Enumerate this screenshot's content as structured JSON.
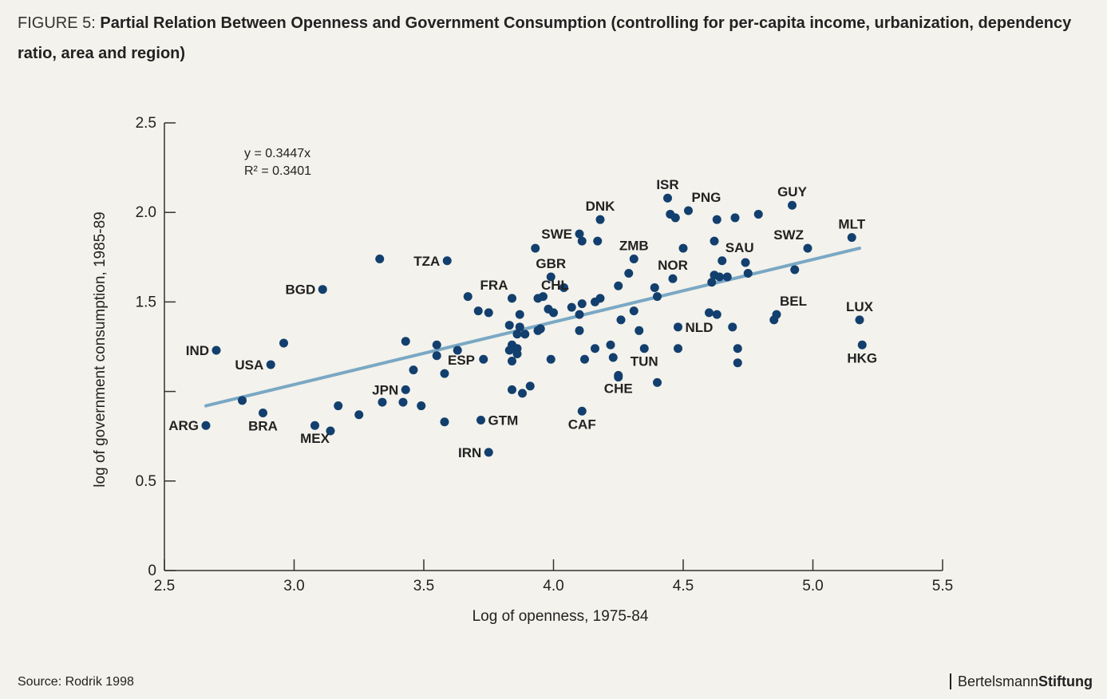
{
  "title_prefix": "FIGURE 5:",
  "title_main": "Partial Relation Between Openness and Government Consumption (controlling for per-capita income, urbanization, dependency ratio, area and region)",
  "source": "Source: Rodrik 1998",
  "brand": {
    "part1": "Bertelsmann",
    "part2": "Stiftung"
  },
  "colors": {
    "point": "#123f6e",
    "trend": "#7aa8c4",
    "axis": "#333333",
    "background": "#f3f2ec"
  },
  "chart_data": {
    "type": "scatter",
    "xlabel": "Log of openness, 1975-84",
    "ylabel": "log of government consumption, 1985-89",
    "xlim": [
      2.5,
      5.5
    ],
    "ylim": [
      0,
      2.5
    ],
    "xticks": [
      "2.5",
      "3.0",
      "3.5",
      "4.0",
      "4.5",
      "5.0",
      "5.5"
    ],
    "yticks": [
      "0",
      "0.5",
      "1.5",
      "2.0",
      "2.5"
    ],
    "yticks_values": [
      0,
      0.5,
      1.5,
      2.0,
      2.5
    ],
    "xticks_values": [
      2.5,
      3.0,
      3.5,
      4.0,
      4.5,
      5.0,
      5.5
    ],
    "extra_ytick_marks": [
      1.0
    ],
    "grid": false,
    "trendline": {
      "equation": "y = 0.3447x",
      "r2": "R² = 0.3401",
      "x_range": [
        2.66,
        5.18
      ],
      "y_range": [
        0.92,
        1.8
      ]
    },
    "points": [
      {
        "x": 2.66,
        "y": 0.81,
        "label": "ARG",
        "side": "left"
      },
      {
        "x": 2.7,
        "y": 1.23,
        "label": "IND",
        "side": "left"
      },
      {
        "x": 2.8,
        "y": 0.95,
        "label": ""
      },
      {
        "x": 2.88,
        "y": 0.88,
        "label": "BRA",
        "side": "below"
      },
      {
        "x": 2.91,
        "y": 1.15,
        "label": "USA",
        "side": "left"
      },
      {
        "x": 2.96,
        "y": 1.27,
        "label": ""
      },
      {
        "x": 3.08,
        "y": 0.81,
        "label": "MEX",
        "side": "below"
      },
      {
        "x": 3.11,
        "y": 1.57,
        "label": "BGD",
        "side": "left"
      },
      {
        "x": 3.14,
        "y": 0.78,
        "label": ""
      },
      {
        "x": 3.17,
        "y": 0.92,
        "label": ""
      },
      {
        "x": 3.25,
        "y": 0.87,
        "label": ""
      },
      {
        "x": 3.33,
        "y": 1.74,
        "label": ""
      },
      {
        "x": 3.34,
        "y": 0.94,
        "label": ""
      },
      {
        "x": 3.42,
        "y": 0.94,
        "label": ""
      },
      {
        "x": 3.43,
        "y": 1.01,
        "label": "JPN",
        "side": "left"
      },
      {
        "x": 3.43,
        "y": 1.28,
        "label": ""
      },
      {
        "x": 3.46,
        "y": 1.12,
        "label": ""
      },
      {
        "x": 3.49,
        "y": 0.92,
        "label": ""
      },
      {
        "x": 3.55,
        "y": 1.26,
        "label": ""
      },
      {
        "x": 3.55,
        "y": 1.2,
        "label": ""
      },
      {
        "x": 3.58,
        "y": 0.83,
        "label": ""
      },
      {
        "x": 3.58,
        "y": 1.1,
        "label": "ESP",
        "side": "above-right"
      },
      {
        "x": 3.59,
        "y": 1.73,
        "label": "TZA",
        "side": "left"
      },
      {
        "x": 3.63,
        "y": 1.23,
        "label": ""
      },
      {
        "x": 3.67,
        "y": 1.53,
        "label": ""
      },
      {
        "x": 3.71,
        "y": 1.45,
        "label": ""
      },
      {
        "x": 3.72,
        "y": 0.84,
        "label": "GTM",
        "side": "right"
      },
      {
        "x": 3.73,
        "y": 1.18,
        "label": ""
      },
      {
        "x": 3.75,
        "y": 1.44,
        "label": ""
      },
      {
        "x": 3.75,
        "y": 0.66,
        "label": "IRN",
        "side": "left"
      },
      {
        "x": 3.83,
        "y": 1.37,
        "label": ""
      },
      {
        "x": 3.83,
        "y": 1.23,
        "label": ""
      },
      {
        "x": 3.84,
        "y": 1.26,
        "label": ""
      },
      {
        "x": 3.84,
        "y": 1.17,
        "label": ""
      },
      {
        "x": 3.84,
        "y": 1.01,
        "label": ""
      },
      {
        "x": 3.84,
        "y": 1.52,
        "label": "FRA",
        "side": "above-left"
      },
      {
        "x": 3.86,
        "y": 1.32,
        "label": ""
      },
      {
        "x": 3.86,
        "y": 1.24,
        "label": ""
      },
      {
        "x": 3.86,
        "y": 1.21,
        "label": ""
      },
      {
        "x": 3.87,
        "y": 1.36,
        "label": ""
      },
      {
        "x": 3.87,
        "y": 1.43,
        "label": ""
      },
      {
        "x": 3.88,
        "y": 0.99,
        "label": ""
      },
      {
        "x": 3.89,
        "y": 1.32,
        "label": ""
      },
      {
        "x": 3.91,
        "y": 1.03,
        "label": ""
      },
      {
        "x": 3.93,
        "y": 1.8,
        "label": ""
      },
      {
        "x": 3.94,
        "y": 1.52,
        "label": "CHL",
        "side": "above-right"
      },
      {
        "x": 3.94,
        "y": 1.34,
        "label": ""
      },
      {
        "x": 3.95,
        "y": 1.35,
        "label": ""
      },
      {
        "x": 3.96,
        "y": 1.53,
        "label": ""
      },
      {
        "x": 3.98,
        "y": 1.46,
        "label": ""
      },
      {
        "x": 3.99,
        "y": 1.18,
        "label": ""
      },
      {
        "x": 3.99,
        "y": 1.64,
        "label": "GBR",
        "side": "above"
      },
      {
        "x": 4.0,
        "y": 1.44,
        "label": ""
      },
      {
        "x": 4.04,
        "y": 1.58,
        "label": ""
      },
      {
        "x": 4.07,
        "y": 1.47,
        "label": ""
      },
      {
        "x": 4.1,
        "y": 1.88,
        "label": "SWE",
        "side": "left"
      },
      {
        "x": 4.1,
        "y": 1.34,
        "label": ""
      },
      {
        "x": 4.1,
        "y": 1.43,
        "label": ""
      },
      {
        "x": 4.11,
        "y": 1.49,
        "label": ""
      },
      {
        "x": 4.11,
        "y": 1.84,
        "label": ""
      },
      {
        "x": 4.11,
        "y": 0.89,
        "label": "CAF",
        "side": "below"
      },
      {
        "x": 4.12,
        "y": 1.18,
        "label": ""
      },
      {
        "x": 4.16,
        "y": 1.24,
        "label": ""
      },
      {
        "x": 4.16,
        "y": 1.5,
        "label": ""
      },
      {
        "x": 4.17,
        "y": 1.84,
        "label": ""
      },
      {
        "x": 4.18,
        "y": 1.52,
        "label": ""
      },
      {
        "x": 4.18,
        "y": 1.96,
        "label": "DNK",
        "side": "above"
      },
      {
        "x": 4.22,
        "y": 1.26,
        "label": ""
      },
      {
        "x": 4.23,
        "y": 1.19,
        "label": ""
      },
      {
        "x": 4.25,
        "y": 1.59,
        "label": ""
      },
      {
        "x": 4.25,
        "y": 1.08,
        "label": ""
      },
      {
        "x": 4.25,
        "y": 1.09,
        "label": "CHE",
        "side": "below"
      },
      {
        "x": 4.26,
        "y": 1.4,
        "label": ""
      },
      {
        "x": 4.29,
        "y": 1.66,
        "label": ""
      },
      {
        "x": 4.31,
        "y": 1.45,
        "label": ""
      },
      {
        "x": 4.31,
        "y": 1.74,
        "label": "ZMB",
        "side": "above"
      },
      {
        "x": 4.33,
        "y": 1.34,
        "label": ""
      },
      {
        "x": 4.35,
        "y": 1.24,
        "label": "TUN",
        "side": "below"
      },
      {
        "x": 4.39,
        "y": 1.58,
        "label": ""
      },
      {
        "x": 4.4,
        "y": 1.53,
        "label": ""
      },
      {
        "x": 4.4,
        "y": 1.05,
        "label": ""
      },
      {
        "x": 4.44,
        "y": 2.08,
        "label": "ISR",
        "side": "above"
      },
      {
        "x": 4.45,
        "y": 1.99,
        "label": ""
      },
      {
        "x": 4.46,
        "y": 1.63,
        "label": "NOR",
        "side": "above"
      },
      {
        "x": 4.47,
        "y": 1.97,
        "label": ""
      },
      {
        "x": 4.48,
        "y": 1.36,
        "label": "NLD",
        "side": "right"
      },
      {
        "x": 4.48,
        "y": 1.24,
        "label": ""
      },
      {
        "x": 4.5,
        "y": 1.8,
        "label": ""
      },
      {
        "x": 4.52,
        "y": 2.01,
        "label": "PNG",
        "side": "above-right"
      },
      {
        "x": 4.6,
        "y": 1.44,
        "label": ""
      },
      {
        "x": 4.61,
        "y": 1.61,
        "label": ""
      },
      {
        "x": 4.62,
        "y": 1.84,
        "label": ""
      },
      {
        "x": 4.62,
        "y": 1.65,
        "label": ""
      },
      {
        "x": 4.63,
        "y": 1.96,
        "label": ""
      },
      {
        "x": 4.63,
        "y": 1.43,
        "label": ""
      },
      {
        "x": 4.64,
        "y": 1.64,
        "label": ""
      },
      {
        "x": 4.65,
        "y": 1.73,
        "label": "SAU",
        "side": "above-right"
      },
      {
        "x": 4.67,
        "y": 1.64,
        "label": ""
      },
      {
        "x": 4.69,
        "y": 1.36,
        "label": ""
      },
      {
        "x": 4.7,
        "y": 1.97,
        "label": ""
      },
      {
        "x": 4.71,
        "y": 1.24,
        "label": ""
      },
      {
        "x": 4.71,
        "y": 1.16,
        "label": ""
      },
      {
        "x": 4.74,
        "y": 1.72,
        "label": ""
      },
      {
        "x": 4.75,
        "y": 1.66,
        "label": ""
      },
      {
        "x": 4.79,
        "y": 1.99,
        "label": ""
      },
      {
        "x": 4.85,
        "y": 1.4,
        "label": ""
      },
      {
        "x": 4.86,
        "y": 1.43,
        "label": "BEL",
        "side": "above-right"
      },
      {
        "x": 4.92,
        "y": 2.04,
        "label": "GUY",
        "side": "above"
      },
      {
        "x": 4.93,
        "y": 1.68,
        "label": ""
      },
      {
        "x": 4.98,
        "y": 1.8,
        "label": "SWZ",
        "side": "above-left"
      },
      {
        "x": 5.15,
        "y": 1.86,
        "label": "MLT",
        "side": "above"
      },
      {
        "x": 5.18,
        "y": 1.4,
        "label": "LUX",
        "side": "above"
      },
      {
        "x": 5.19,
        "y": 1.26,
        "label": "HKG",
        "side": "below"
      }
    ]
  }
}
